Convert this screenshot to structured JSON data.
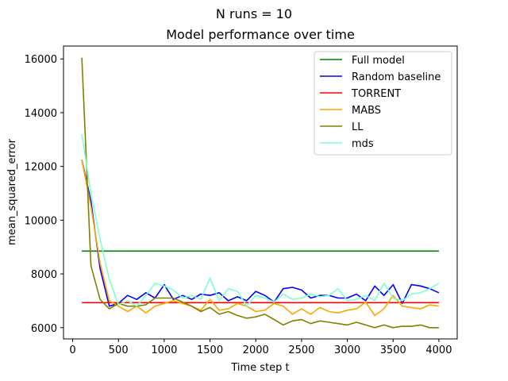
{
  "chart_data": {
    "type": "line",
    "suptitle": "N runs = 10",
    "title": "Model performance over time",
    "xlabel": "Time step t",
    "ylabel": "mean_squared_error",
    "xlim": [
      -100,
      4200
    ],
    "ylim": [
      5580,
      16480
    ],
    "xticks": [
      0,
      500,
      1000,
      1500,
      2000,
      2500,
      3000,
      3500,
      4000
    ],
    "yticks": [
      6000,
      8000,
      10000,
      12000,
      14000,
      16000
    ],
    "grid": false,
    "legend_position": "upper right",
    "series": [
      {
        "name": "Full model",
        "color": "#008000",
        "x": [
          100,
          4000
        ],
        "y": [
          8850,
          8850
        ]
      },
      {
        "name": "Random baseline",
        "color": "#0000ff",
        "x": [
          100,
          200,
          300,
          400,
          500,
          600,
          700,
          800,
          900,
          1000,
          1100,
          1200,
          1300,
          1400,
          1500,
          1600,
          1700,
          1800,
          1900,
          2000,
          2100,
          2200,
          2300,
          2400,
          2500,
          2600,
          2700,
          2800,
          2900,
          3000,
          3100,
          3200,
          3300,
          3400,
          3500,
          3600,
          3700,
          3800,
          3900,
          4000
        ],
        "y": [
          12250,
          10700,
          8200,
          6800,
          6900,
          7200,
          7050,
          7300,
          7100,
          7600,
          7050,
          7200,
          7050,
          7250,
          7200,
          7300,
          7000,
          7150,
          7000,
          7350,
          7200,
          6950,
          7450,
          7500,
          7400,
          7100,
          7200,
          7200,
          7100,
          7100,
          7250,
          7000,
          7550,
          7200,
          7600,
          6900,
          7600,
          7550,
          7450,
          7300
        ]
      },
      {
        "name": "TORRENT",
        "color": "#ff0000",
        "x": [
          100,
          4000
        ],
        "y": [
          6930,
          6930
        ]
      },
      {
        "name": "MABS",
        "color": "#ffa500",
        "x": [
          100,
          200,
          300,
          400,
          500,
          600,
          700,
          800,
          900,
          1000,
          1100,
          1200,
          1300,
          1400,
          1500,
          1600,
          1700,
          1800,
          1900,
          2000,
          2100,
          2200,
          2300,
          2400,
          2500,
          2600,
          2700,
          2800,
          2900,
          3000,
          3100,
          3200,
          3300,
          3400,
          3500,
          3600,
          3700,
          3800,
          3900,
          4000
        ],
        "y": [
          12250,
          10500,
          8400,
          7000,
          6800,
          6600,
          6800,
          6550,
          6800,
          6900,
          7000,
          6900,
          6800,
          6650,
          7050,
          6650,
          6700,
          6900,
          6800,
          6600,
          6650,
          6900,
          6800,
          6500,
          6700,
          6500,
          6750,
          6600,
          6550,
          6650,
          6700,
          6950,
          6450,
          6700,
          7200,
          6800,
          6750,
          6700,
          6850,
          6800
        ]
      },
      {
        "name": "LL",
        "color": "#808000",
        "x": [
          100,
          200,
          300,
          400,
          500,
          600,
          700,
          800,
          900,
          1000,
          1100,
          1200,
          1300,
          1400,
          1500,
          1600,
          1700,
          1800,
          1900,
          2000,
          2100,
          2200,
          2300,
          2400,
          2500,
          2600,
          2700,
          2800,
          2900,
          3000,
          3100,
          3200,
          3300,
          3400,
          3500,
          3600,
          3700,
          3800,
          3900,
          4000
        ],
        "y": [
          16050,
          8300,
          7050,
          6700,
          6900,
          6800,
          6800,
          6850,
          7100,
          7100,
          7100,
          6950,
          6800,
          6600,
          6750,
          6500,
          6600,
          6450,
          6350,
          6400,
          6500,
          6300,
          6100,
          6250,
          6300,
          6150,
          6250,
          6200,
          6150,
          6100,
          6200,
          6100,
          6000,
          6100,
          6000,
          6050,
          6050,
          6100,
          6000,
          6000
        ]
      },
      {
        "name": "mds",
        "color": "#7fffd4",
        "x": [
          100,
          200,
          300,
          400,
          500,
          600,
          700,
          800,
          900,
          1000,
          1100,
          1200,
          1300,
          1400,
          1500,
          1600,
          1700,
          1800,
          1900,
          2000,
          2100,
          2200,
          2300,
          2400,
          2500,
          2600,
          2700,
          2800,
          2900,
          3000,
          3100,
          3200,
          3300,
          3400,
          3500,
          3600,
          3700,
          3800,
          3900,
          4000
        ],
        "y": [
          13200,
          11000,
          9300,
          7800,
          6850,
          7000,
          6800,
          7200,
          7650,
          7550,
          7400,
          7100,
          7200,
          7050,
          7850,
          7000,
          7450,
          7350,
          6800,
          7200,
          7100,
          6950,
          7250,
          7050,
          7100,
          7250,
          7150,
          7200,
          7450,
          7000,
          7050,
          7200,
          7000,
          7650,
          7100,
          7000,
          7250,
          7300,
          7450,
          7650
        ]
      }
    ]
  }
}
